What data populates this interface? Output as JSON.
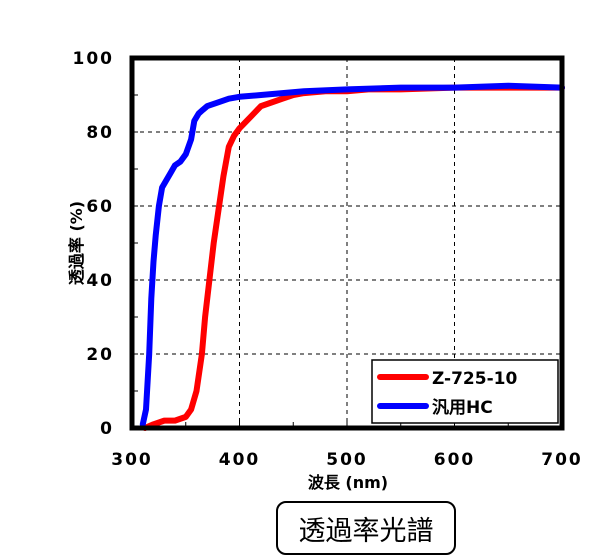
{
  "chart_data": {
    "type": "line",
    "title": "",
    "xlabel": "波長 (nm)",
    "ylabel": "透過率 (%)",
    "xlim": [
      300,
      700
    ],
    "ylim": [
      0,
      100
    ],
    "xticks": [
      300,
      400,
      500,
      600,
      700
    ],
    "yticks": [
      0,
      20,
      40,
      60,
      80,
      100
    ],
    "grid": "dashed at major ticks",
    "legend_position": "lower right (inside plot)",
    "series": [
      {
        "name": "Z-725-10",
        "color": "#ff0000",
        "x": [
          312,
          320,
          330,
          340,
          350,
          355,
          360,
          365,
          368,
          372,
          376,
          380,
          385,
          390,
          395,
          400,
          410,
          420,
          430,
          440,
          450,
          460,
          480,
          500,
          520,
          550,
          600,
          650,
          700
        ],
        "y": [
          0,
          1,
          2,
          2,
          3,
          5,
          10,
          20,
          30,
          40,
          50,
          58,
          68,
          76,
          79,
          81,
          84,
          87,
          88,
          89,
          90,
          90.5,
          91,
          91,
          91.5,
          91.5,
          92,
          92,
          92
        ]
      },
      {
        "name": "汎用HC",
        "color": "#0000ff",
        "x": [
          310,
          313,
          316,
          318,
          320,
          322,
          325,
          328,
          332,
          336,
          340,
          345,
          350,
          355,
          358,
          362,
          366,
          370,
          380,
          390,
          400,
          420,
          440,
          460,
          500,
          550,
          600,
          650,
          700
        ],
        "y": [
          1,
          5,
          20,
          35,
          45,
          52,
          60,
          65,
          67,
          69,
          71,
          72,
          74,
          78,
          83,
          85,
          86,
          87,
          88,
          89,
          89.5,
          90,
          90.5,
          91,
          91.5,
          92,
          92,
          92.5,
          92
        ]
      }
    ]
  },
  "axes": {
    "x_tick_labels": [
      "300",
      "400",
      "500",
      "600",
      "700"
    ],
    "y_tick_labels": [
      "0",
      "20",
      "40",
      "60",
      "80",
      "100"
    ],
    "xlabel": "波長 (nm)",
    "ylabel": "透過率 (%)"
  },
  "legend": [
    {
      "label": "Z-725-10",
      "color": "#ff0000"
    },
    {
      "label": "汎用HC",
      "color": "#0000ff"
    }
  ],
  "caption": "透過率光譜"
}
